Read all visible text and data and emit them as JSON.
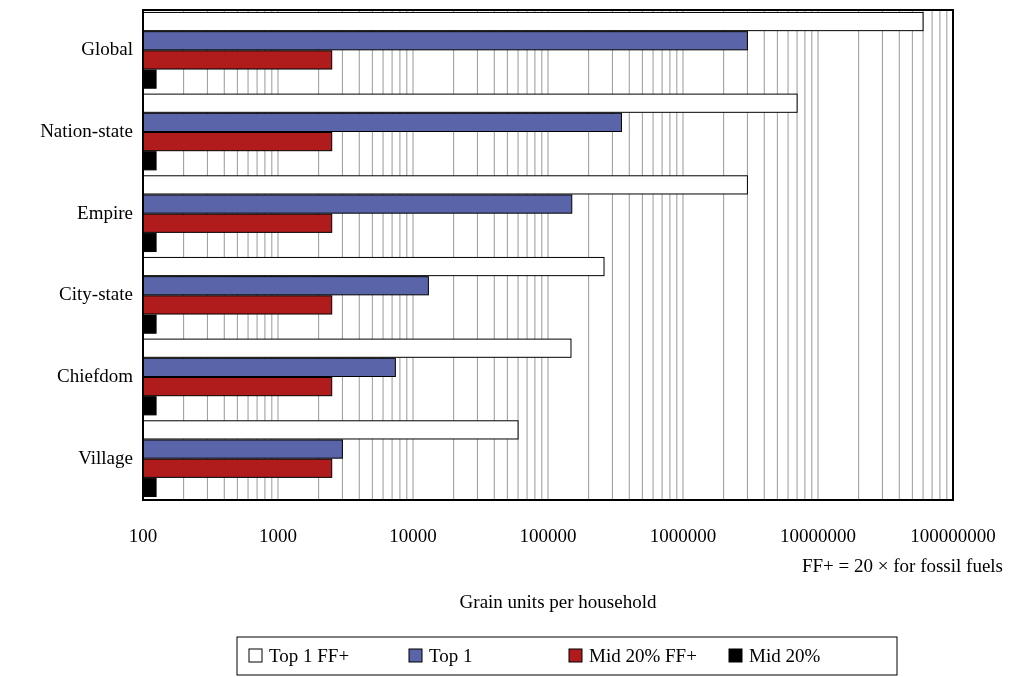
{
  "chart_data": {
    "type": "bar",
    "orientation": "horizontal",
    "log": "x",
    "grid": "x",
    "legend": "bottom",
    "xlabel": "Grain units per household",
    "annotations": [
      "FF+ = 20 × for fossil fuels"
    ],
    "categories": [
      "Global",
      "Nation-state",
      "Empire",
      "City-state",
      "Chiefdom",
      "Village"
    ],
    "xlim": [
      100,
      100000000
    ],
    "xticks": [
      100,
      {
        "value": 200,
        "label": null
      },
      {
        "value": 300,
        "label": null
      },
      {
        "value": 400,
        "label": null
      },
      {
        "value": 500,
        "label": null
      },
      {
        "value": 600,
        "label": null
      },
      {
        "value": 700,
        "label": null
      },
      {
        "value": 800,
        "label": null
      },
      {
        "value": 900,
        "label": null
      },
      1000,
      {
        "value": 2000,
        "label": null
      },
      {
        "value": 3000,
        "label": null
      },
      {
        "value": 4000,
        "label": null
      },
      {
        "value": 5000,
        "label": null
      },
      {
        "value": 6000,
        "label": null
      },
      {
        "value": 7000,
        "label": null
      },
      {
        "value": 8000,
        "label": null
      },
      {
        "value": 9000,
        "label": null
      },
      10000,
      {
        "value": 20000,
        "label": null
      },
      {
        "value": 30000,
        "label": null
      },
      {
        "value": 40000,
        "label": null
      },
      {
        "value": 50000,
        "label": null
      },
      {
        "value": 60000,
        "label": null
      },
      {
        "value": 70000,
        "label": null
      },
      {
        "value": 80000,
        "label": null
      },
      {
        "value": 90000,
        "label": null
      },
      100000,
      {
        "value": 200000,
        "label": null
      },
      {
        "value": 300000,
        "label": null
      },
      {
        "value": 400000,
        "label": null
      },
      {
        "value": 500000,
        "label": null
      },
      {
        "value": 600000,
        "label": null
      },
      {
        "value": 700000,
        "label": null
      },
      {
        "value": 800000,
        "label": null
      },
      {
        "value": 900000,
        "label": null
      },
      1000000,
      {
        "value": 2000000,
        "label": null
      },
      {
        "value": 3000000,
        "label": null
      },
      {
        "value": 4000000,
        "label": null
      },
      {
        "value": 5000000,
        "label": null
      },
      {
        "value": 6000000,
        "label": null
      },
      {
        "value": 7000000,
        "label": null
      },
      {
        "value": 8000000,
        "label": null
      },
      {
        "value": 9000000,
        "label": null
      },
      10000000,
      {
        "value": 20000000,
        "label": null
      },
      {
        "value": 30000000,
        "label": null
      },
      {
        "value": 40000000,
        "label": null
      },
      {
        "value": 50000000,
        "label": null
      },
      {
        "value": 60000000,
        "label": null
      },
      {
        "value": 70000000,
        "label": null
      },
      {
        "value": 80000000,
        "label": null
      },
      {
        "value": 90000000,
        "label": null
      },
      100000000
    ],
    "series": [
      {
        "name": "Top 1 FF+",
        "color": "#ffffff",
        "values": [
          60000000,
          7000000,
          3000000,
          260000,
          148000,
          60000
        ]
      },
      {
        "name": "Top 1",
        "color": "#5a64a8",
        "values": [
          3000000,
          350000,
          150000,
          13000,
          7400,
          3000
        ]
      },
      {
        "name": "Mid 20% FF+",
        "color": "#b01c1c",
        "values": [
          2500,
          2500,
          2500,
          2500,
          2500,
          2500
        ]
      },
      {
        "name": "Mid 20%",
        "color": "#000000",
        "values": [
          125,
          125,
          125,
          125,
          125,
          125
        ]
      }
    ]
  }
}
